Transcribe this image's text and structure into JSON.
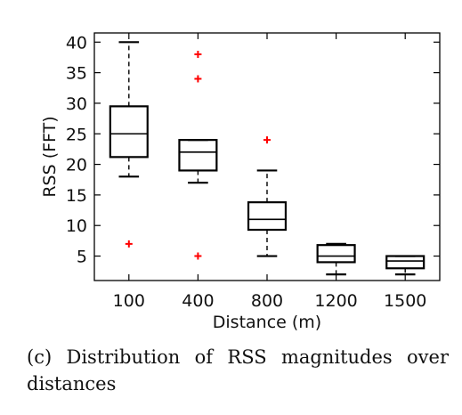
{
  "chart_data": {
    "type": "box",
    "xlabel": "Distance (m)",
    "ylabel": "RSS (FFT)",
    "categories": [
      "100",
      "400",
      "800",
      "1200",
      "1500"
    ],
    "yticks": [
      5,
      10,
      15,
      20,
      25,
      30,
      35,
      40
    ],
    "ylim": [
      1,
      41.5
    ],
    "grid": false,
    "boxes": [
      {
        "category": "100",
        "whisker_low": 18,
        "q1": 21.2,
        "median": 25,
        "q3": 29.5,
        "whisker_high": 40,
        "outliers": [
          7
        ]
      },
      {
        "category": "400",
        "whisker_low": 17,
        "q1": 19,
        "median": 22,
        "q3": 24,
        "whisker_high": 24,
        "outliers": [
          38,
          34,
          5
        ]
      },
      {
        "category": "800",
        "whisker_low": 5,
        "q1": 9.3,
        "median": 11,
        "q3": 13.8,
        "whisker_high": 19,
        "outliers": [
          24
        ]
      },
      {
        "category": "1200",
        "whisker_low": 2,
        "q1": 4,
        "median": 5,
        "q3": 6.8,
        "whisker_high": 7,
        "outliers": []
      },
      {
        "category": "1500",
        "whisker_low": 2,
        "q1": 3,
        "median": 4.2,
        "q3": 5,
        "whisker_high": 5,
        "outliers": []
      }
    ],
    "colors": {
      "box": "#000000",
      "whisker": "#000000",
      "outlier": "#ff0000"
    }
  },
  "caption": "(c) Distribution of RSS magnitudes over distances"
}
